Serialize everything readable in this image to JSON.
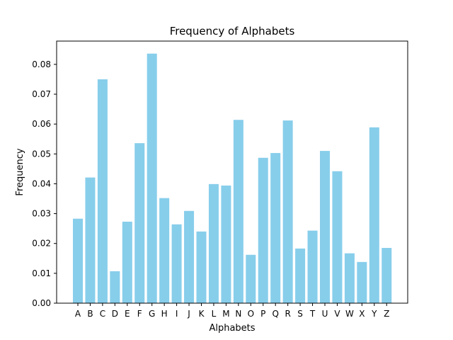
{
  "chart_data": {
    "type": "bar",
    "title": "Frequency of Alphabets",
    "xlabel": "Alphabets",
    "ylabel": "Frequency",
    "categories": [
      "A",
      "B",
      "C",
      "D",
      "E",
      "F",
      "G",
      "H",
      "I",
      "J",
      "K",
      "L",
      "M",
      "N",
      "O",
      "P",
      "Q",
      "R",
      "S",
      "T",
      "U",
      "V",
      "W",
      "X",
      "Y",
      "Z"
    ],
    "values": [
      0.0283,
      0.0421,
      0.075,
      0.0107,
      0.0273,
      0.0536,
      0.0836,
      0.0352,
      0.0264,
      0.0309,
      0.024,
      0.0399,
      0.0394,
      0.0614,
      0.0162,
      0.0487,
      0.0503,
      0.0612,
      0.0183,
      0.0243,
      0.051,
      0.0442,
      0.0167,
      0.0138,
      0.0589,
      0.0185
    ],
    "yticks": [
      "0.00",
      "0.01",
      "0.02",
      "0.03",
      "0.04",
      "0.05",
      "0.06",
      "0.07",
      "0.08"
    ],
    "ylim": [
      0,
      0.0878
    ],
    "grid": false,
    "bar_color": "#87CEEB"
  }
}
